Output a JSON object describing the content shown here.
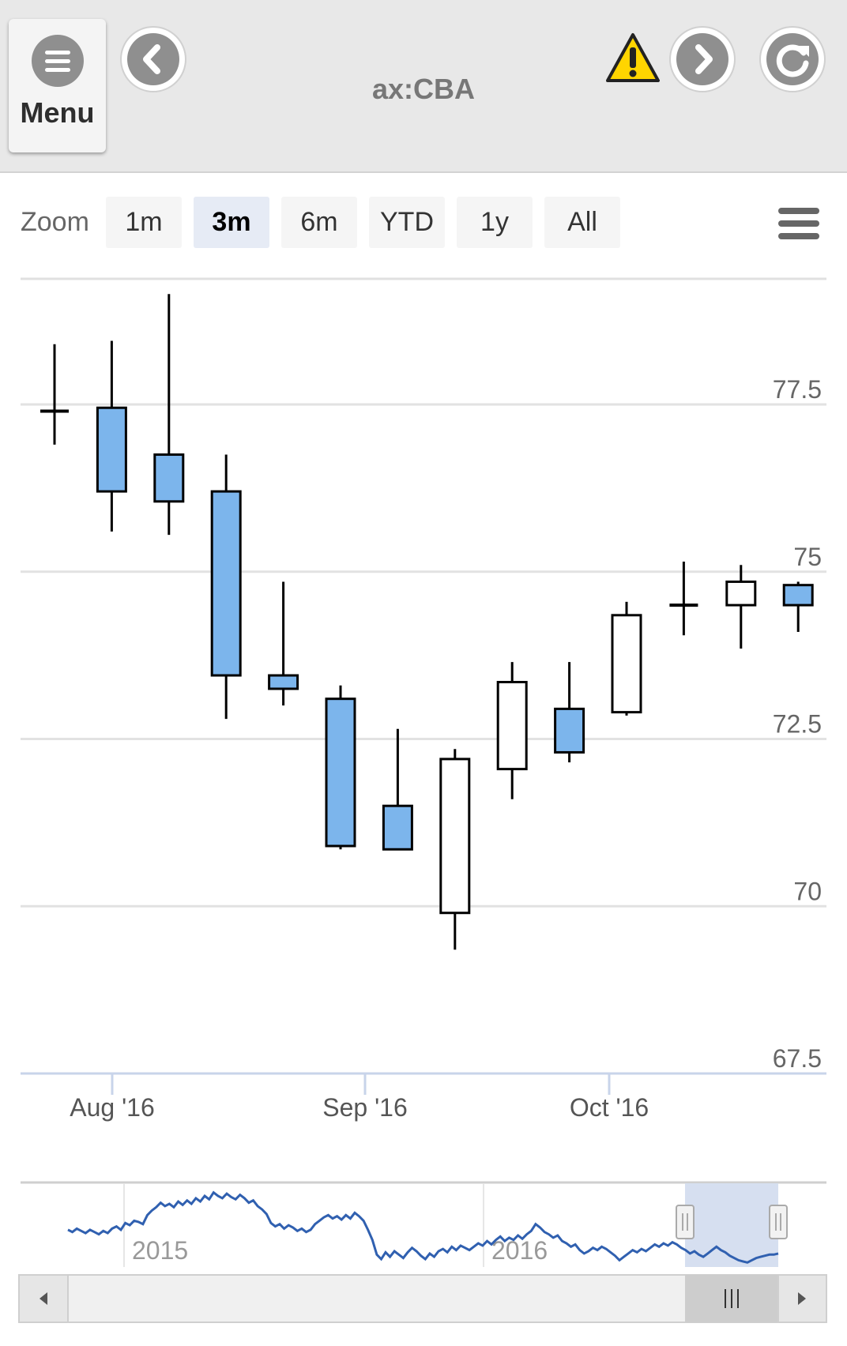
{
  "header": {
    "menu_label": "Menu",
    "title": "ax:CBA",
    "back_icon": "chevron-left-icon",
    "forward_icon": "chevron-right-icon",
    "refresh_icon": "refresh-icon",
    "warning_icon": "warning-icon",
    "warning_color": "#ffd500"
  },
  "zoom": {
    "label": "Zoom",
    "buttons": [
      "1m",
      "3m",
      "6m",
      "YTD",
      "1y",
      "All"
    ],
    "active": "3m",
    "menu_icon": "hamburger-icon"
  },
  "colors": {
    "down_fill": "#7cb5ec",
    "up_fill": "#ffffff",
    "navigator_line": "#3060b0",
    "navigator_mask": "#d6dff0"
  },
  "chart_data": {
    "type": "candlestick",
    "series": [
      {
        "name": "",
        "values": [
          {
            "open": 77.4,
            "high": 78.4,
            "low": 76.9,
            "close": 77.4
          },
          {
            "open": 77.45,
            "high": 78.45,
            "low": 75.6,
            "close": 76.2
          },
          {
            "open": 76.75,
            "high": 79.15,
            "low": 75.55,
            "close": 76.05
          },
          {
            "open": 76.2,
            "high": 76.75,
            "low": 72.8,
            "close": 73.45
          },
          {
            "open": 73.45,
            "high": 74.85,
            "low": 73.0,
            "close": 73.25
          },
          {
            "open": 73.1,
            "high": 73.3,
            "low": 70.85,
            "close": 70.9
          },
          {
            "open": 71.5,
            "high": 72.65,
            "low": 70.85,
            "close": 70.85
          },
          {
            "open": 69.9,
            "high": 72.35,
            "low": 69.35,
            "close": 72.2
          },
          {
            "open": 72.05,
            "high": 73.65,
            "low": 71.6,
            "close": 73.35
          },
          {
            "open": 72.95,
            "high": 73.65,
            "low": 72.15,
            "close": 72.3
          },
          {
            "open": 72.9,
            "high": 74.55,
            "low": 72.85,
            "close": 74.35
          },
          {
            "open": 74.5,
            "high": 75.15,
            "low": 74.05,
            "close": 74.5
          },
          {
            "open": 74.5,
            "high": 75.1,
            "low": 73.85,
            "close": 74.85
          },
          {
            "open": 74.8,
            "high": 74.85,
            "low": 74.1,
            "close": 74.5
          }
        ]
      }
    ],
    "y_ticks": [
      "77.5",
      "75",
      "72.5",
      "70",
      "67.5"
    ],
    "ylim": [
      67.5,
      80
    ],
    "x_ticks": [
      "Aug '16",
      "Sep '16",
      "Oct '16"
    ],
    "navigator": {
      "x_ticks": [
        "2015",
        "2016"
      ],
      "values": [
        72.8,
        72.6,
        72.9,
        72.7,
        72.5,
        72.8,
        72.6,
        72.4,
        72.7,
        72.5,
        72.9,
        73.1,
        72.8,
        73.4,
        73.2,
        73.6,
        73.5,
        73.3,
        74.1,
        74.5,
        74.8,
        75.2,
        74.9,
        75.1,
        74.8,
        75.3,
        75.0,
        75.4,
        75.1,
        75.6,
        75.3,
        75.8,
        75.5,
        76.1,
        75.8,
        75.6,
        76.0,
        75.7,
        75.5,
        75.9,
        75.6,
        75.2,
        75.4,
        74.9,
        74.6,
        74.2,
        73.4,
        73.1,
        73.3,
        72.9,
        73.2,
        73.0,
        72.7,
        72.9,
        72.6,
        72.8,
        73.3,
        73.6,
        73.9,
        74.1,
        73.8,
        74.0,
        73.7,
        74.1,
        73.8,
        74.3,
        74.0,
        73.6,
        72.8,
        71.9,
        70.6,
        70.2,
        70.8,
        70.4,
        70.9,
        70.6,
        70.3,
        70.8,
        71.2,
        70.9,
        70.5,
        70.2,
        70.7,
        70.4,
        70.9,
        71.1,
        70.8,
        71.3,
        71.0,
        71.4,
        71.2,
        71.0,
        71.3,
        71.6,
        71.4,
        71.8,
        71.5,
        71.9,
        72.2,
        71.8,
        72.1,
        71.9,
        72.3,
        72.0,
        72.4,
        72.7,
        73.3,
        73.0,
        72.6,
        72.4,
        72.1,
        72.3,
        71.8,
        71.6,
        71.3,
        71.5,
        71.0,
        70.7,
        70.9,
        71.2,
        71.0,
        71.3,
        71.1,
        70.8,
        70.5,
        70.1,
        70.4,
        70.7,
        71.0,
        70.8,
        71.1,
        70.9,
        71.2,
        71.5,
        71.3,
        71.6,
        71.4,
        71.7,
        71.5,
        71.2,
        71.0,
        70.7,
        70.9,
        70.6,
        70.4,
        70.7,
        71.0,
        71.3,
        71.0,
        70.8,
        70.5,
        70.3,
        70.1,
        70.0,
        69.9,
        70.1,
        70.3,
        70.4,
        70.5,
        70.6,
        70.6,
        70.7
      ]
    }
  }
}
